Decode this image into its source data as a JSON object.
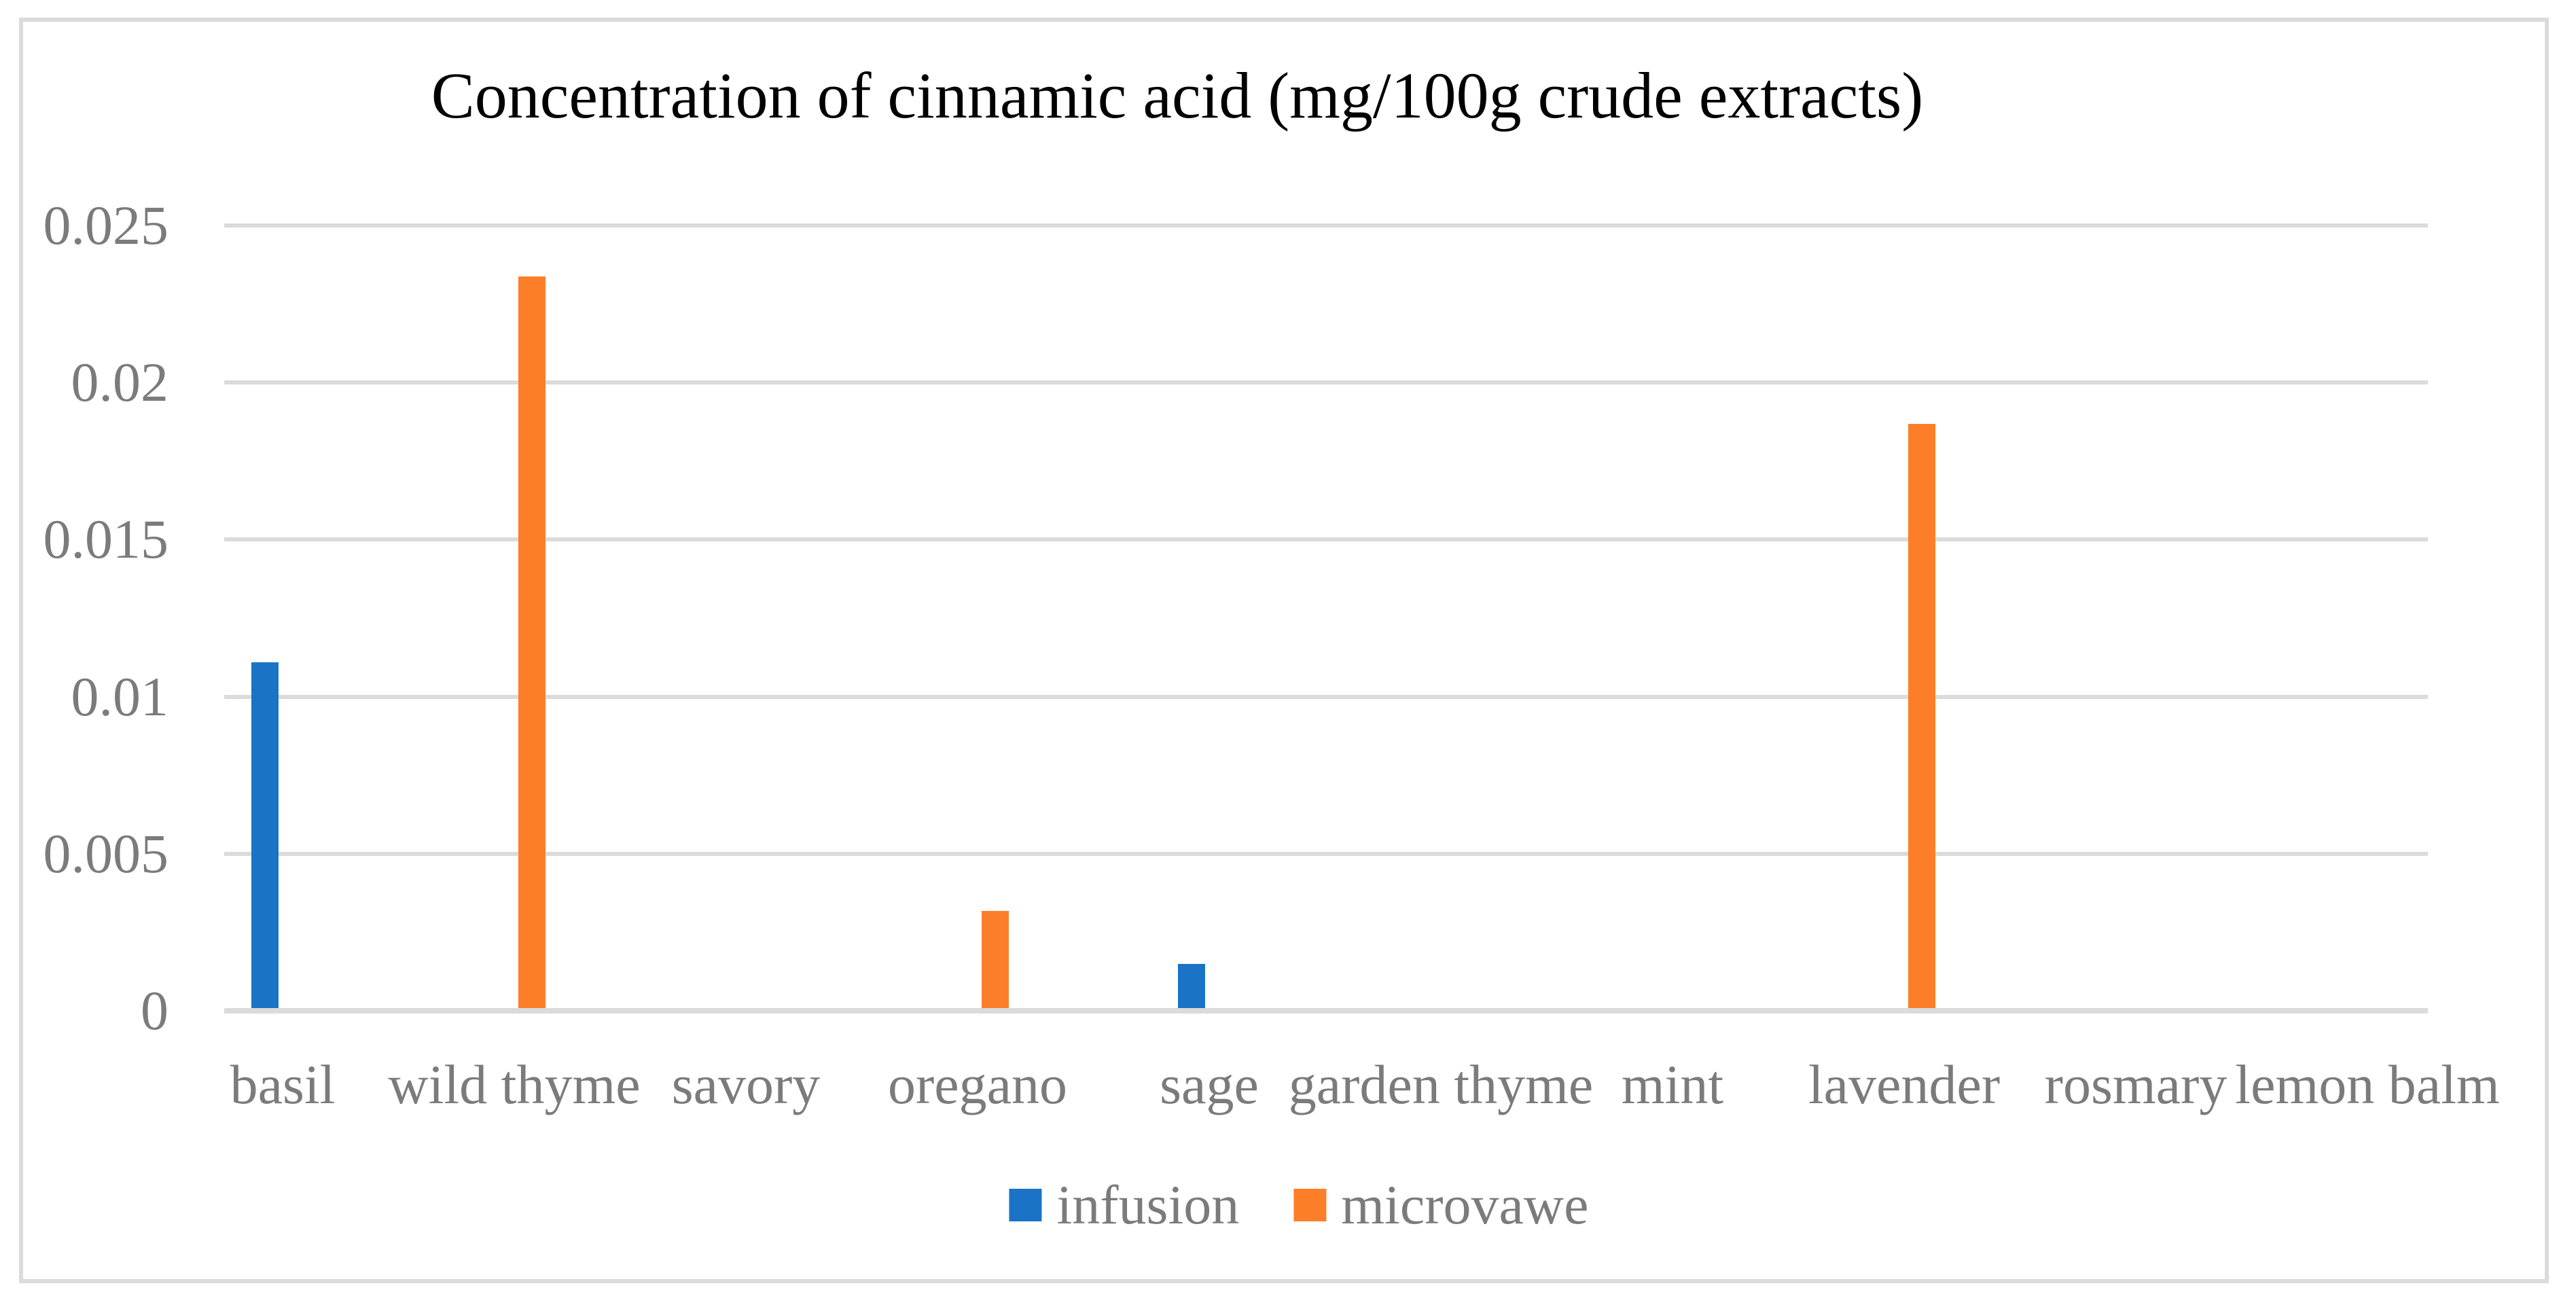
{
  "figure": {
    "background": "#FFFFFF",
    "border_color": "#DBDBDB"
  },
  "chart_data": {
    "type": "bar",
    "title": "Concentration of cinnamic acid (mg/100g crude extracts)",
    "title_color": "#000000",
    "xlabel": "",
    "ylabel": "",
    "categories": [
      "basil",
      "wild thyme",
      "savory",
      "oregano",
      "sage",
      "garden thyme",
      "mint",
      "lavender",
      "rosmary",
      "lemon balm"
    ],
    "series": [
      {
        "name": "infusion",
        "color": "#1A73C7",
        "values": [
          0.011,
          0,
          0,
          0,
          0.0014,
          0,
          0,
          0,
          0,
          0
        ]
      },
      {
        "name": "microvawe",
        "color": "#FD7E28",
        "values": [
          0,
          0.0233,
          0,
          0.0031,
          0,
          0,
          0,
          0.0186,
          0,
          0
        ]
      }
    ],
    "ylim": [
      0,
      0.025
    ],
    "ytick_values": [
      0,
      0.005,
      0.01,
      0.015,
      0.02,
      0.025
    ],
    "ytick_labels": [
      "0",
      "0.005",
      "0.01",
      "0.015",
      "0.02",
      "0.025"
    ],
    "grid": "horizontal",
    "gridline_color": "#DBDBDB",
    "axis_text_color": "#7B7B7B",
    "legend_position": "bottom-center"
  }
}
